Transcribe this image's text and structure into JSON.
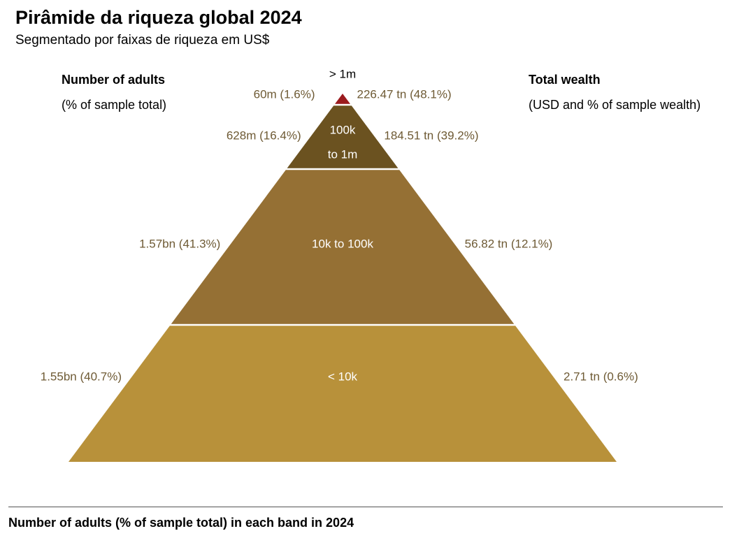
{
  "title": "Pirâmide da riqueza global 2024",
  "subtitle": "Segmentado por faixas de riqueza em US$",
  "left_header": {
    "title": "Number of adults",
    "subtitle": "(% of sample total)"
  },
  "right_header": {
    "title": "Total wealth",
    "subtitle": "(USD and % of sample wealth)"
  },
  "footer": "Number of adults (% of sample total) in each band in 2024",
  "colors": {
    "tier_top": "#9b1b1e",
    "tier_2": "#6b5220",
    "tier_3": "#957034",
    "tier_4": "#b8913a",
    "label_text": "#6e5a34",
    "inner_text": "#ffffff"
  },
  "chart_data": {
    "type": "pyramid",
    "title": "Pirâmide da riqueza global 2024",
    "tiers": [
      {
        "band": "> 1m",
        "band_lines": [
          "> 1m"
        ],
        "adults": "60m (1.6%)",
        "adults_millions": 60,
        "adults_pct": 1.6,
        "wealth": "226.47 tn (48.1%)",
        "wealth_tn": 226.47,
        "wealth_pct": 48.1
      },
      {
        "band": "100k to 1m",
        "band_lines": [
          "100k",
          "to 1m"
        ],
        "adults": "628m (16.4%)",
        "adults_millions": 628,
        "adults_pct": 16.4,
        "wealth": "184.51 tn (39.2%)",
        "wealth_tn": 184.51,
        "wealth_pct": 39.2
      },
      {
        "band": "10k to 100k",
        "band_lines": [
          "10k to 100k"
        ],
        "adults": "1.57bn (41.3%)",
        "adults_millions": 1570,
        "adults_pct": 41.3,
        "wealth": "56.82 tn (12.1%)",
        "wealth_tn": 56.82,
        "wealth_pct": 12.1
      },
      {
        "band": "< 10k",
        "band_lines": [
          "< 10k"
        ],
        "adults": "1.55bn (40.7%)",
        "adults_millions": 1550,
        "adults_pct": 40.7,
        "wealth": "2.71 tn (0.6%)",
        "wealth_tn": 2.71,
        "wealth_pct": 0.6
      }
    ]
  }
}
